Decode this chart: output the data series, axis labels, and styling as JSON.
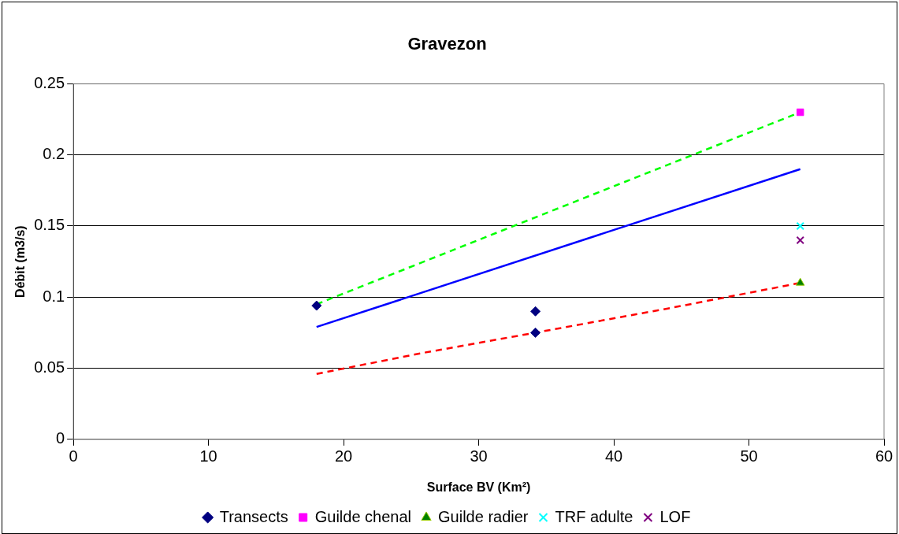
{
  "chart_data": {
    "type": "scatter",
    "title": "Gravezon",
    "xlabel": "Surface BV (Km²)",
    "ylabel": "Débit (m3/s)",
    "xlim": [
      0,
      60
    ],
    "xticks": [
      0,
      10,
      20,
      30,
      40,
      50,
      60
    ],
    "ylim": [
      0,
      0.25
    ],
    "yticks": [
      0,
      0.05,
      0.1,
      0.15,
      0.2,
      0.25
    ],
    "grid": "y",
    "legend": "bottom",
    "series": [
      {
        "name": "Transects",
        "color": "#000080",
        "marker": "diamond",
        "x": [
          18,
          34.2,
          34.2
        ],
        "values": [
          0.094,
          0.09,
          0.075
        ]
      },
      {
        "name": "Guilde chenal",
        "color": "#ff00ff",
        "marker": "square",
        "x": [
          53.8
        ],
        "values": [
          0.23
        ]
      },
      {
        "name": "Guilde radier",
        "color": "#008000",
        "marker": "triangle",
        "x": [
          53.8
        ],
        "values": [
          0.11
        ]
      },
      {
        "name": "TRF adulte",
        "color": "#00ffff",
        "marker": "cross",
        "x": [
          53.8
        ],
        "values": [
          0.15
        ]
      },
      {
        "name": "LOF",
        "color": "#800080",
        "marker": "cross",
        "x": [
          53.8
        ],
        "values": [
          0.14
        ]
      },
      {
        "type": "line",
        "color": "#0000ff",
        "line_style": "solid",
        "marker": "none",
        "x": [
          18,
          53.8
        ],
        "values": [
          0.079,
          0.19
        ]
      },
      {
        "type": "line",
        "color": "#00ff00",
        "line_style": "dashed",
        "marker": "none",
        "x": [
          18,
          53.8
        ],
        "values": [
          0.095,
          0.23
        ]
      },
      {
        "type": "line",
        "color": "#ff0000",
        "line_style": "dashed",
        "marker": "none",
        "x": [
          18,
          26,
          34.2,
          44,
          53.8
        ],
        "values": [
          0.046,
          0.061,
          0.075,
          0.092,
          0.11
        ]
      }
    ]
  }
}
